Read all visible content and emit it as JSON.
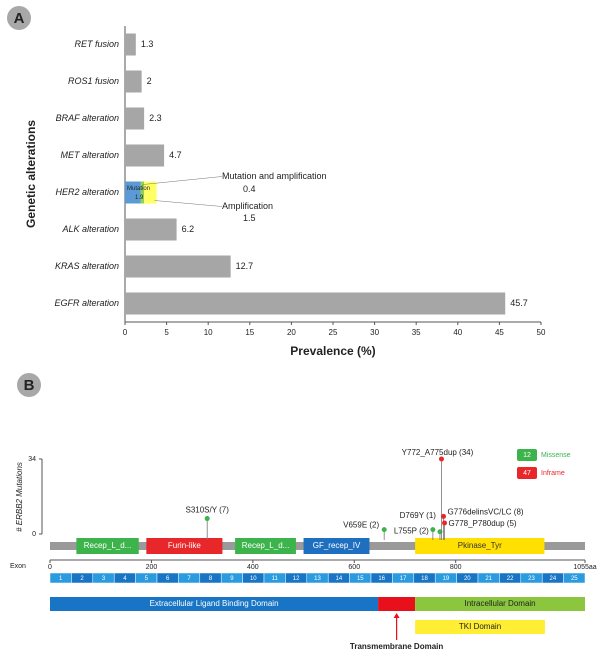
{
  "chart_data": [
    {
      "type": "bar",
      "panel": "A",
      "categories": [
        "RET fusion",
        "ROS1 fusion",
        "BRAF alteration",
        "MET alteration",
        "HER2 alteration",
        "ALK alteration",
        "KRAS alteration",
        "EGFR alteration"
      ],
      "values": [
        1.3,
        2,
        2.3,
        4.7,
        null,
        6.2,
        12.7,
        45.7
      ],
      "color": "#a6a6a6",
      "stacked": {
        "category_index": 4,
        "segments": [
          {
            "name": "Mutation",
            "value": 1.9,
            "color": "#5b9bd5"
          },
          {
            "name": "Mutation and amplification",
            "value": 0.4,
            "color": "#92d050"
          },
          {
            "name": "Amplification",
            "value": 1.5,
            "color": "#ffff66"
          }
        ]
      },
      "xlabel": "Prevalence (%)",
      "ylabel": "Genetic alterations",
      "xlim": [
        0,
        50
      ],
      "xticks": [
        0,
        5,
        10,
        15,
        20,
        25,
        30,
        35,
        40,
        45,
        50
      ]
    },
    {
      "type": "lollipop",
      "panel": "B",
      "ylabel": "# ERBB2 Mutations",
      "exon_label": "Exon",
      "xlim": [
        0,
        1055
      ],
      "xticks": [
        0,
        200,
        400,
        600,
        800,
        {
          "value": 1055,
          "label": "1055aa"
        }
      ],
      "ylim": [
        0,
        34
      ],
      "yticks": [
        0,
        34
      ],
      "mutations": [
        {
          "label": "S310S/Y (7)",
          "position": 310,
          "count": 7,
          "kind": "Missense"
        },
        {
          "label": "V659E (2)",
          "position": 659,
          "count": 2,
          "kind": "Missense"
        },
        {
          "label": "L755P (2)",
          "position": 755,
          "count": 2,
          "kind": "Missense"
        },
        {
          "label": "D769Y (1)",
          "position": 769,
          "count": 1,
          "kind": "Missense"
        },
        {
          "label": "Y772_A775dup (34)",
          "position": 772,
          "count": 34,
          "kind": "Inframe"
        },
        {
          "label": "G776delinsVC/LC (8)",
          "position": 776,
          "count": 8,
          "kind": "Inframe"
        },
        {
          "label": "G778_P780dup (5)",
          "position": 778,
          "count": 5,
          "kind": "Inframe"
        }
      ],
      "legend": [
        {
          "count": 12,
          "label": "Missense",
          "color": "#3cb44b"
        },
        {
          "count": 47,
          "label": "Inframe",
          "color": "#e8272a"
        }
      ],
      "domains": [
        {
          "name": "Recep_L_d...",
          "start": 52,
          "end": 175,
          "color": "#3cb44b"
        },
        {
          "name": "Furin-like",
          "start": 190,
          "end": 340,
          "color": "#e8272a"
        },
        {
          "name": "Recep_L_d...",
          "start": 365,
          "end": 485,
          "color": "#3cb44b"
        },
        {
          "name": "GF_recep_IV",
          "start": 500,
          "end": 630,
          "color": "#1f6fc0"
        },
        {
          "name": "Pkinase_Tyr",
          "start": 720,
          "end": 975,
          "color": "#ffe000"
        }
      ],
      "exons": [
        1,
        2,
        3,
        4,
        5,
        6,
        7,
        8,
        9,
        10,
        11,
        12,
        13,
        14,
        15,
        16,
        17,
        18,
        19,
        20,
        21,
        22,
        23,
        24,
        25
      ],
      "regions": [
        {
          "name": "Extracellular Ligand Binding Domain",
          "start": 0,
          "end": 647,
          "color": "#1874c4"
        },
        {
          "name": "Transmembrane Domain",
          "start": 647,
          "end": 720,
          "color": "#e8101a"
        },
        {
          "name": "Intracellular Domain",
          "start": 720,
          "end": 1055,
          "color": "#8cc63e"
        },
        {
          "name": "TKI Domain",
          "start": 720,
          "end": 976,
          "color": "#ffee33"
        }
      ]
    }
  ]
}
